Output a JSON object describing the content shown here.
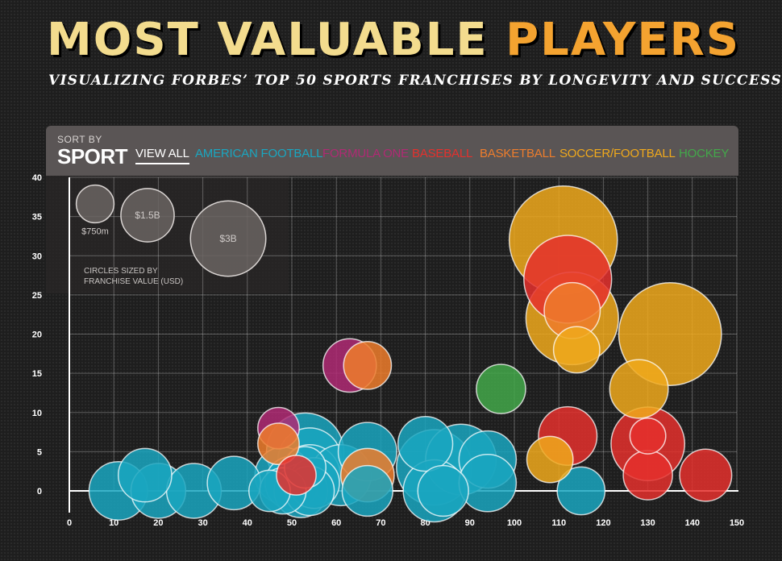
{
  "header": {
    "title_part1": "MOST VALUABLE",
    "title_part2": "PLAYERS",
    "subtitle": "VISUALIZING FORBES’ TOP 50 SPORTS FRANCHISES BY LONGEVITY AND SUCCESS"
  },
  "sort": {
    "label": "SORT BY",
    "current": "SPORT",
    "filters": [
      {
        "label": "VIEW ALL",
        "color": "#ffffff"
      },
      {
        "label": "AMERICAN FOOTBALL",
        "color": "#1aa6c0"
      },
      {
        "label": "FORMULA ONE",
        "color": "#b02a74"
      },
      {
        "label": "BASEBALL",
        "color": "#e5302d"
      },
      {
        "label": "BASKETBALL",
        "color": "#ee7d2c"
      },
      {
        "label": "SOCCER/FOOTBALL",
        "color": "#f0a91c"
      },
      {
        "label": "HOCKEY",
        "color": "#43a84a"
      }
    ]
  },
  "legend": {
    "sizes": [
      {
        "label": "$750m",
        "value": 0.75
      },
      {
        "label": "$1.5B",
        "value": 1.5
      },
      {
        "label": "$3B",
        "value": 3
      }
    ],
    "note_line1": "CIRCLES SIZED BY",
    "note_line2": "FRANCHISE VALUE (USD)"
  },
  "colors": {
    "american_football": "#1aa6c0",
    "formula_one": "#b02a74",
    "baseball": "#e5302d",
    "basketball": "#ee7d2c",
    "soccer": "#f0a91c",
    "hockey": "#43a84a"
  },
  "chart_data": {
    "type": "scatter",
    "size_encoding": "franchise value (USD billions)",
    "xlim": [
      0,
      150
    ],
    "ylim": [
      0,
      40
    ],
    "xticks": [
      0,
      10,
      20,
      30,
      40,
      50,
      60,
      70,
      80,
      90,
      100,
      110,
      120,
      130,
      140,
      150
    ],
    "yticks": [
      0,
      5,
      10,
      15,
      20,
      25,
      30,
      35,
      40
    ],
    "grid": true,
    "points": [
      {
        "sport": "american_football",
        "x": 11,
        "y": 0,
        "v": 1.2
      },
      {
        "sport": "american_football",
        "x": 17,
        "y": 2,
        "v": 1.0
      },
      {
        "sport": "american_football",
        "x": 20,
        "y": 0,
        "v": 1.05
      },
      {
        "sport": "american_football",
        "x": 28,
        "y": 0,
        "v": 1.05
      },
      {
        "sport": "american_football",
        "x": 37,
        "y": 1,
        "v": 1.0
      },
      {
        "sport": "american_football",
        "x": 45,
        "y": 0,
        "v": 0.6
      },
      {
        "sport": "american_football",
        "x": 48,
        "y": 2,
        "v": 1.1
      },
      {
        "sport": "american_football",
        "x": 48,
        "y": 0,
        "v": 0.75
      },
      {
        "sport": "american_football",
        "x": 50,
        "y": 1,
        "v": 1.0
      },
      {
        "sport": "american_football",
        "x": 53,
        "y": 5,
        "v": 2.1
      },
      {
        "sport": "american_football",
        "x": 54,
        "y": 4,
        "v": 1.4
      },
      {
        "sport": "american_football",
        "x": 52,
        "y": 0,
        "v": 1.0
      },
      {
        "sport": "american_football",
        "x": 54,
        "y": 2,
        "v": 1.3
      },
      {
        "sport": "american_football",
        "x": 55,
        "y": 1,
        "v": 0.9
      },
      {
        "sport": "american_football",
        "x": 54,
        "y": 0,
        "v": 0.85
      },
      {
        "sport": "american_football",
        "x": 53,
        "y": 3,
        "v": 0.6
      },
      {
        "sport": "american_football",
        "x": 61,
        "y": 2,
        "v": 1.3
      },
      {
        "sport": "american_football",
        "x": 67,
        "y": 5,
        "v": 1.2
      },
      {
        "sport": "american_football",
        "x": 67,
        "y": 0,
        "v": 0.9
      },
      {
        "sport": "american_football",
        "x": 80,
        "y": 6,
        "v": 1.05
      },
      {
        "sport": "american_football",
        "x": 82,
        "y": 3,
        "v": 2.0
      },
      {
        "sport": "american_football",
        "x": 82,
        "y": 0,
        "v": 1.35
      },
      {
        "sport": "american_football",
        "x": 84,
        "y": 0,
        "v": 0.9
      },
      {
        "sport": "american_football",
        "x": 88,
        "y": 4,
        "v": 1.75
      },
      {
        "sport": "american_football",
        "x": 94,
        "y": 4,
        "v": 1.15
      },
      {
        "sport": "american_football",
        "x": 94,
        "y": 1,
        "v": 1.15
      },
      {
        "sport": "american_football",
        "x": 115,
        "y": 0,
        "v": 0.8
      },
      {
        "sport": "formula_one",
        "x": 63,
        "y": 16,
        "v": 1.0
      },
      {
        "sport": "formula_one",
        "x": 47,
        "y": 8,
        "v": 0.6
      },
      {
        "sport": "basketball",
        "x": 67,
        "y": 16,
        "v": 0.8
      },
      {
        "sport": "basketball",
        "x": 47,
        "y": 6,
        "v": 0.6
      },
      {
        "sport": "basketball",
        "x": 67,
        "y": 2,
        "v": 1.0
      },
      {
        "sport": "basketball",
        "x": 113,
        "y": 23,
        "v": 1.1
      },
      {
        "sport": "baseball",
        "x": 51,
        "y": 2,
        "v": 0.55
      },
      {
        "sport": "baseball",
        "x": 112,
        "y": 27,
        "v": 2.7
      },
      {
        "sport": "baseball",
        "x": 112,
        "y": 7,
        "v": 1.2
      },
      {
        "sport": "baseball",
        "x": 130,
        "y": 6,
        "v": 1.9
      },
      {
        "sport": "baseball",
        "x": 130,
        "y": 2,
        "v": 0.85
      },
      {
        "sport": "baseball",
        "x": 143,
        "y": 2,
        "v": 0.95
      },
      {
        "sport": "soccer",
        "x": 111,
        "y": 32,
        "v": 4.1
      },
      {
        "sport": "soccer",
        "x": 135,
        "y": 20,
        "v": 3.7
      },
      {
        "sport": "soccer",
        "x": 113,
        "y": 22,
        "v": 3.0
      },
      {
        "sport": "soccer",
        "x": 128,
        "y": 13,
        "v": 1.2
      },
      {
        "sport": "soccer",
        "x": 114,
        "y": 18,
        "v": 0.75
      },
      {
        "sport": "soccer",
        "x": 108,
        "y": 4,
        "v": 0.75
      },
      {
        "sport": "baseball",
        "x": 130,
        "y": 7,
        "v": 0.45
      },
      {
        "sport": "hockey",
        "x": 97,
        "y": 13,
        "v": 0.85
      }
    ]
  }
}
